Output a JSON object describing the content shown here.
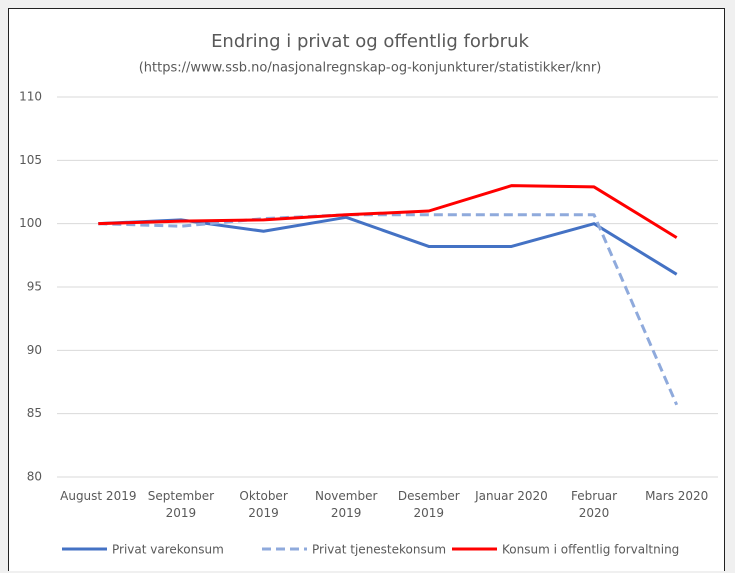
{
  "chart_data": {
    "type": "line",
    "title": "Endring i privat og offentlig forbruk",
    "subtitle": "(https://www.ssb.no/nasjonalregnskap-og-konjunkturer/statistikker/knr)",
    "categories": [
      "August 2019",
      "September 2019",
      "Oktober 2019",
      "November 2019",
      "Desember 2019",
      "Januar 2020",
      "Februar 2020",
      "Mars 2020"
    ],
    "series": [
      {
        "name": "Privat varekonsum",
        "color": "#4472c4",
        "dash": false,
        "values": [
          100,
          100.3,
          99.4,
          100.5,
          98.2,
          98.2,
          100,
          96
        ]
      },
      {
        "name": "Privat tjenestekonsum",
        "color": "#8faadc",
        "dash": true,
        "values": [
          100,
          99.8,
          100.4,
          100.7,
          100.7,
          100.7,
          100.7,
          85.7
        ]
      },
      {
        "name": "Konsum i offentlig forvaltning",
        "color": "#ff0000",
        "dash": false,
        "values": [
          100,
          100.2,
          100.3,
          100.7,
          101,
          103,
          102.9,
          98.9
        ]
      }
    ],
    "ylim": [
      80,
      110
    ],
    "yticks": [
      80,
      85,
      90,
      95,
      100,
      105,
      110
    ],
    "grid": true,
    "legend": "bottom"
  }
}
